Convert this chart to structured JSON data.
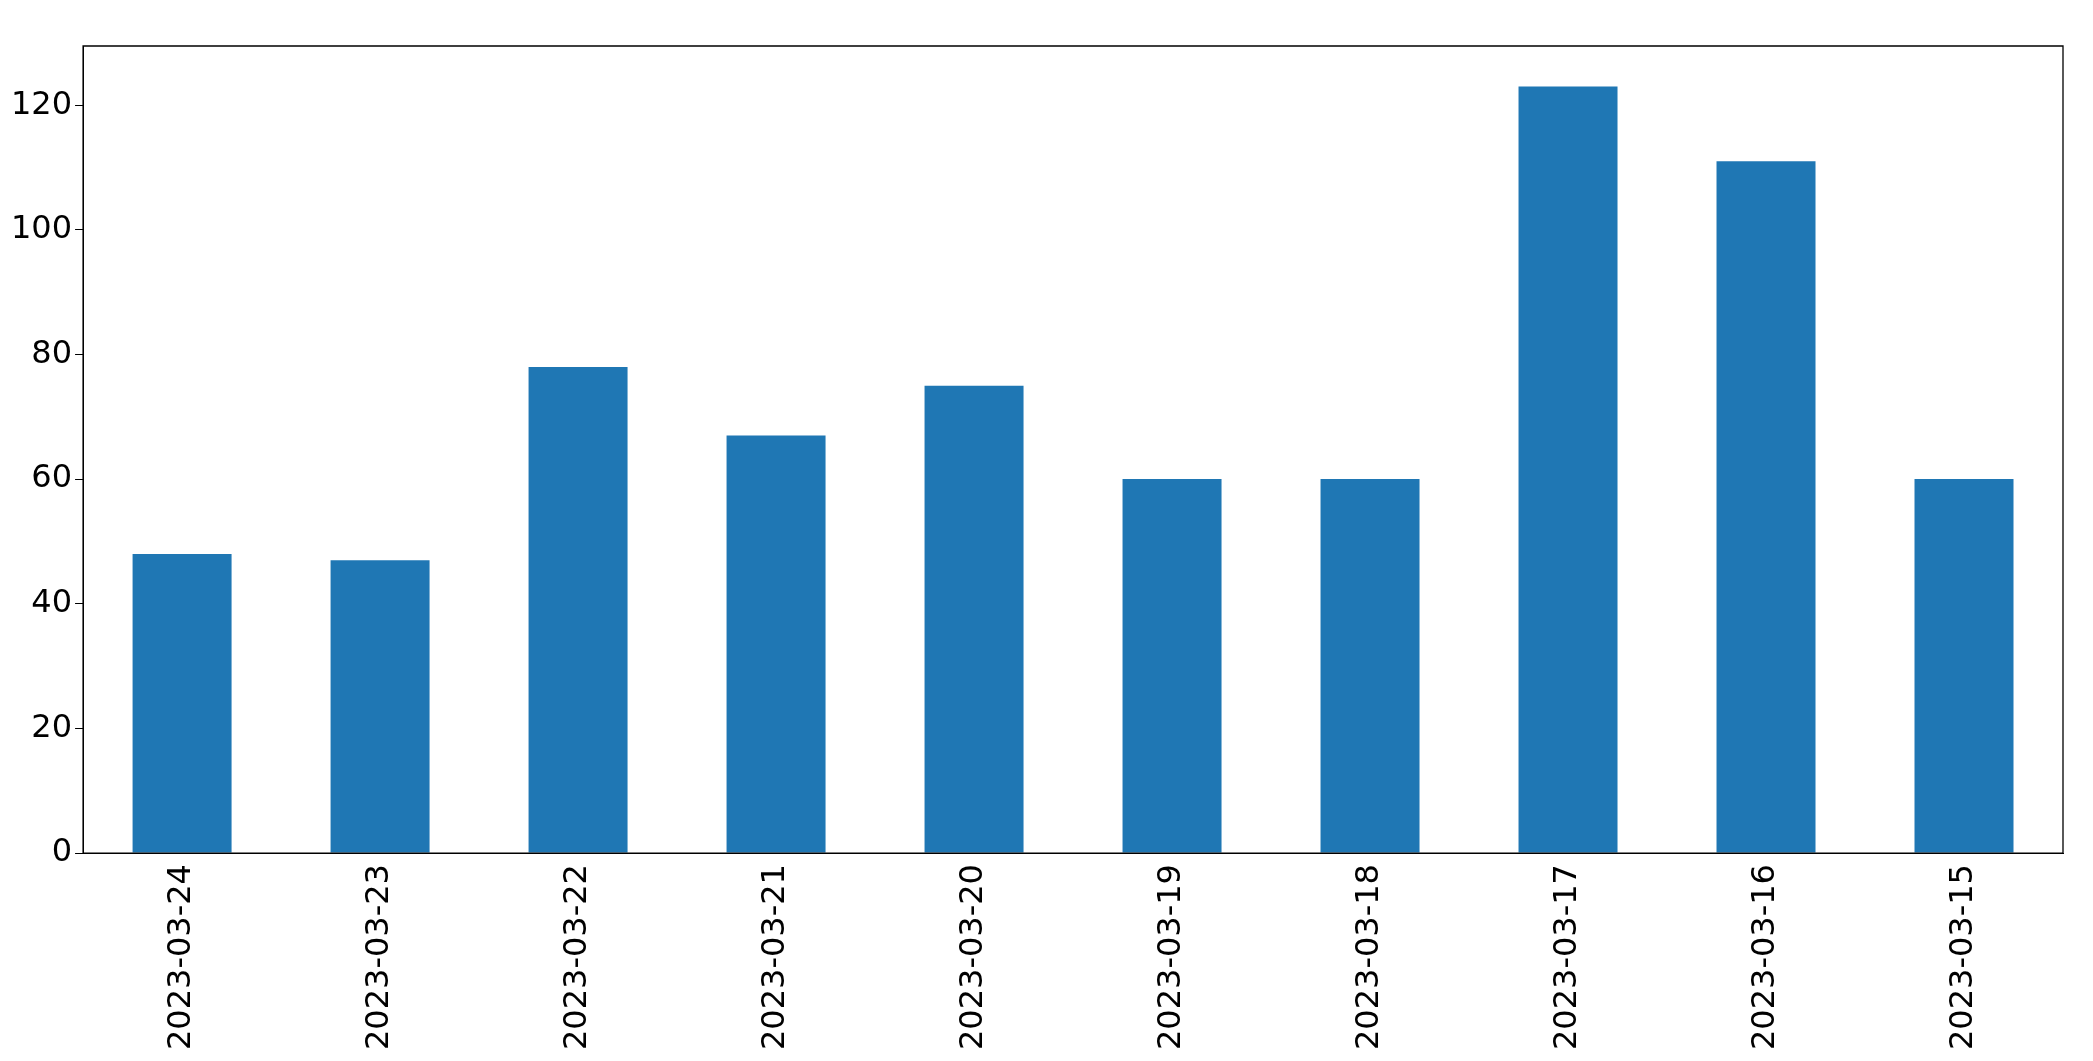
{
  "chart_data": {
    "type": "bar",
    "categories": [
      "2023-03-24",
      "2023-03-23",
      "2023-03-22",
      "2023-03-21",
      "2023-03-20",
      "2023-03-19",
      "2023-03-18",
      "2023-03-17",
      "2023-03-16",
      "2023-03-15"
    ],
    "values": [
      48,
      47,
      78,
      67,
      75,
      60,
      60,
      123,
      111,
      60
    ],
    "color": "#1f77b4",
    "ylim": [
      0,
      129.5
    ],
    "yticks": [
      0,
      20,
      40,
      60,
      80,
      100,
      120
    ],
    "grid": false,
    "legend": false
  }
}
